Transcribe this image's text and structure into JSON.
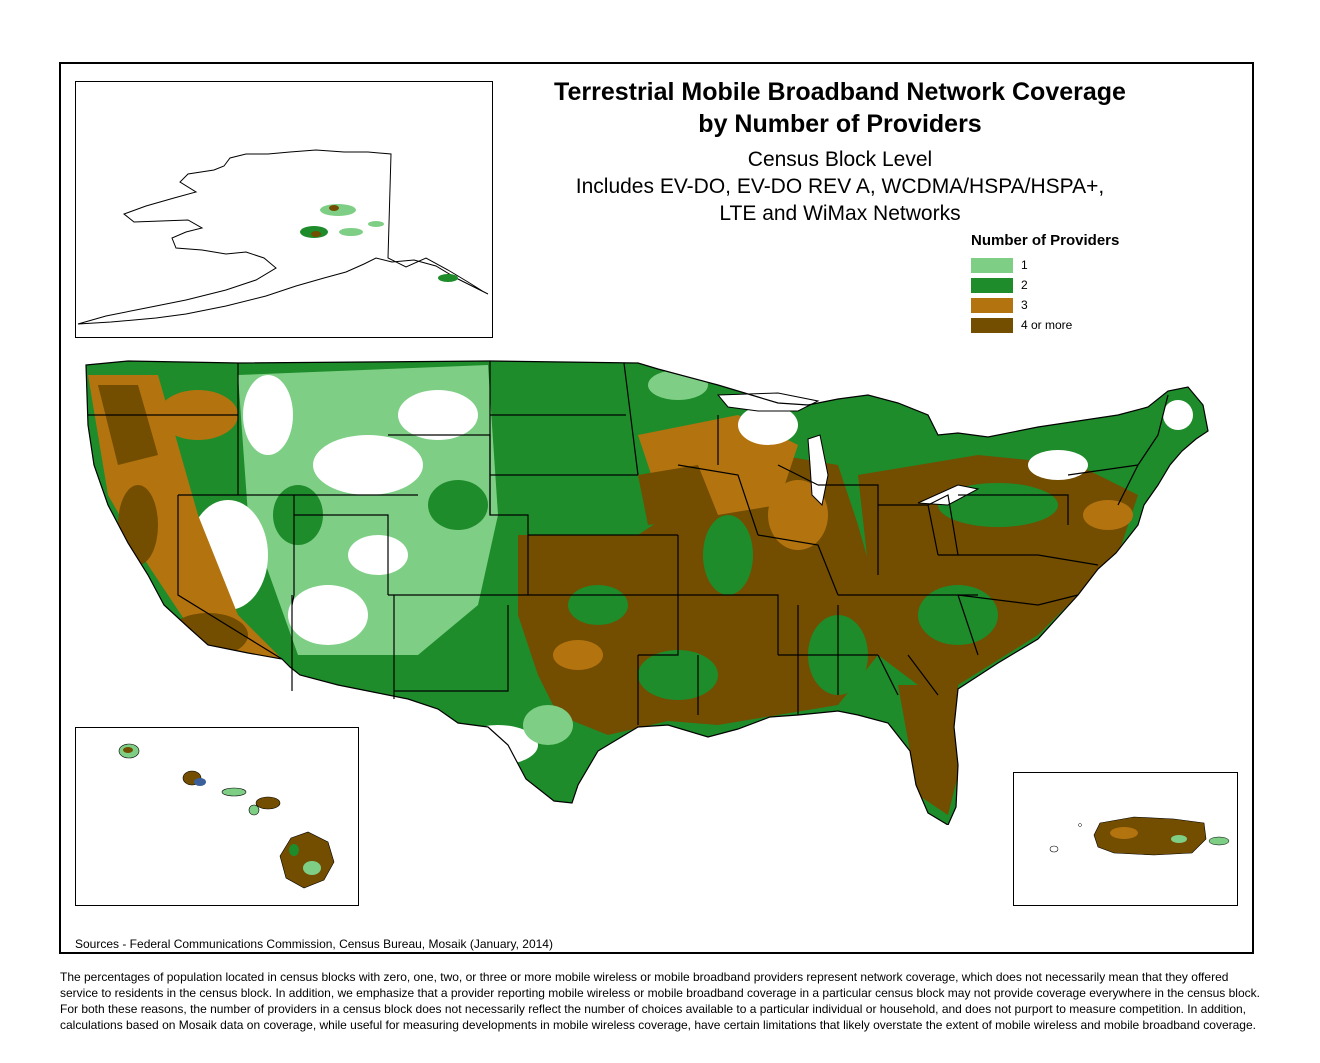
{
  "title_line1": "Terrestrial Mobile Broadband Network Coverage",
  "title_line2": "by Number of Providers",
  "subtitle_line1": "Census Block Level",
  "subtitle_line2": "Includes EV-DO, EV-DO REV A, WCDMA/HSPA/HSPA+,",
  "subtitle_line3": "LTE and WiMax Networks",
  "legend": {
    "title": "Number of Providers",
    "items": [
      {
        "label": "1",
        "color": "#7ecf85"
      },
      {
        "label": "2",
        "color": "#1e8c2a"
      },
      {
        "label": "3",
        "color": "#b3730f"
      },
      {
        "label": "4 or more",
        "color": "#734d00"
      }
    ]
  },
  "sources": "Sources - Federal Communications Commission, Census Bureau, Mosaik (January, 2014)",
  "disclaimer": "The percentages of population located in census blocks with zero, one, two, or three or more mobile wireless or mobile broadband providers represent network coverage, which does not necessarily mean that they offered service to residents in the census block. In addition, we emphasize that a provider reporting mobile wireless or mobile broadband coverage in a particular census block may not provide coverage everywhere in the census block. For both these reasons, the number of providers in a census block does not necessarily reflect the number of choices available to a particular individual or household, and does not purport to measure competition. In addition, calculations based on Mosaik data on coverage, while useful for measuring developments in mobile wireless coverage, have certain limitations that likely overstate the extent of mobile wireless and mobile broadband coverage."
}
